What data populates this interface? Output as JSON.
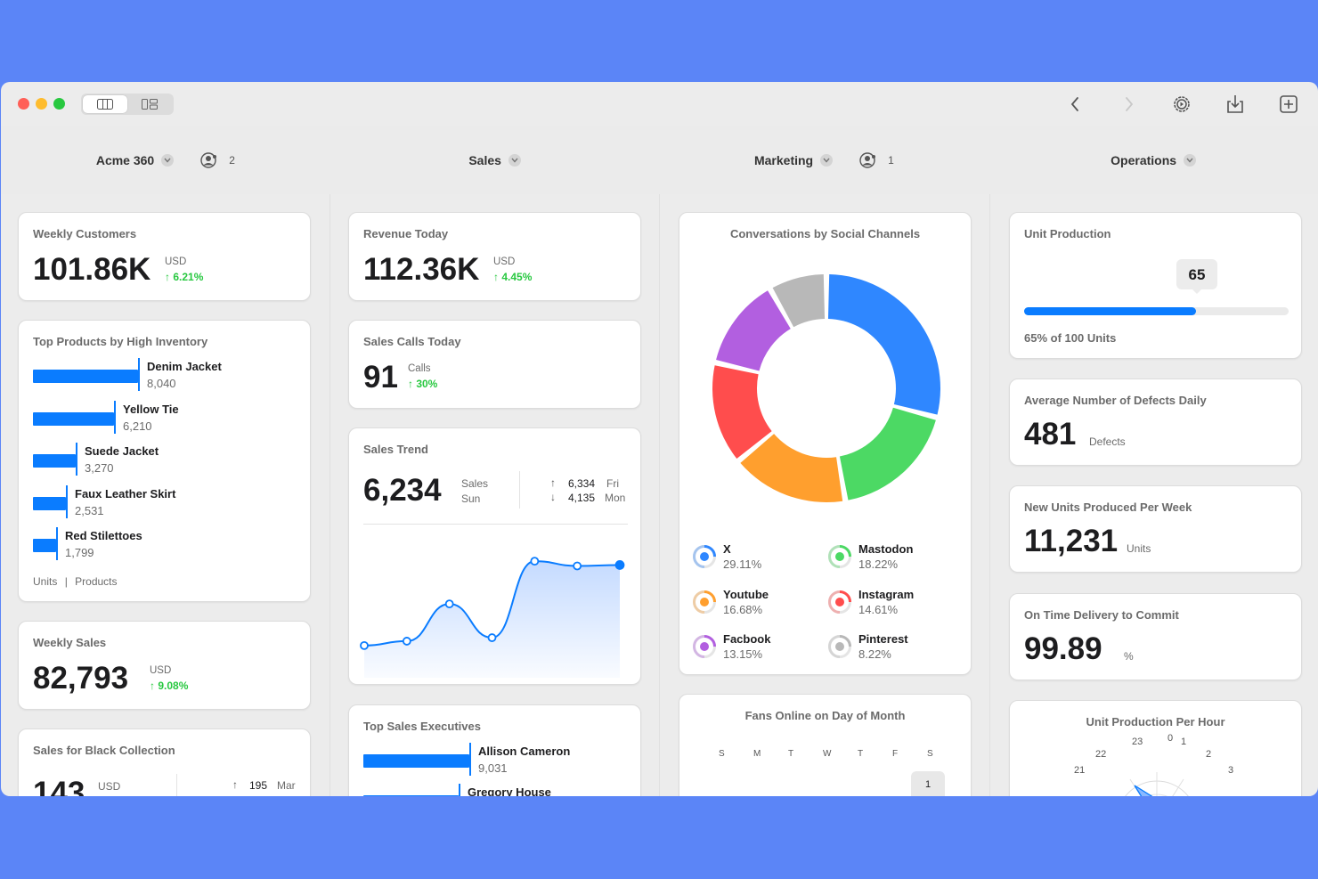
{
  "toolbar": {
    "icons": [
      "sidebar-columns-icon",
      "layout-grid-icon",
      "chevron-left-icon",
      "chevron-right-icon",
      "settings-gear-icon",
      "download-tray-icon",
      "add-square-icon"
    ]
  },
  "columns": [
    {
      "label": "Acme 360",
      "members": "2"
    },
    {
      "label": "Sales"
    },
    {
      "label": "Marketing",
      "members": "1"
    },
    {
      "label": "Operations"
    }
  ],
  "weekly_customers": {
    "title": "Weekly Customers",
    "value": "101.86K",
    "unit": "USD",
    "delta": "↑ 6.21%"
  },
  "top_products": {
    "title": "Top Products by High Inventory",
    "footer_units": "Units",
    "footer_products": "Products",
    "items": [
      {
        "name": "Denim Jacket",
        "value": "8,040",
        "amount": 8040
      },
      {
        "name": "Yellow Tie",
        "value": "6,210",
        "amount": 6210
      },
      {
        "name": "Suede Jacket",
        "value": "3,270",
        "amount": 3270
      },
      {
        "name": "Faux Leather Skirt",
        "value": "2,531",
        "amount": 2531
      },
      {
        "name": "Red Stilettoes",
        "value": "1,799",
        "amount": 1799
      }
    ]
  },
  "weekly_sales": {
    "title": "Weekly Sales",
    "value": "82,793",
    "unit": "USD",
    "delta": "↑ 9.08%"
  },
  "black_collection": {
    "title": "Sales for Black Collection",
    "value": "143",
    "unit": "USD",
    "high": "195",
    "high_label": "Mar"
  },
  "revenue_today": {
    "title": "Revenue Today",
    "value": "112.36K",
    "unit": "USD",
    "delta": "↑ 4.45%"
  },
  "sales_calls": {
    "title": "Sales Calls Today",
    "value": "91",
    "unit": "Calls",
    "delta": "↑ 30%"
  },
  "sales_trend": {
    "title": "Sales Trend",
    "value": "6,234",
    "unit": "Sales",
    "day": "Sun",
    "high": "6,334",
    "high_day": "Fri",
    "low": "4,135",
    "low_day": "Mon"
  },
  "top_execs": {
    "title": "Top Sales Executives",
    "items": [
      {
        "name": "Allison Cameron",
        "value": "9,031"
      },
      {
        "name": "Gregory House",
        "value": ""
      }
    ]
  },
  "social": {
    "title": "Conversations by Social Channels",
    "legend": [
      {
        "name": "X",
        "value": "29.11%",
        "color": "#2f87ff"
      },
      {
        "name": "Mastodon",
        "value": "18.22%",
        "color": "#4cd964"
      },
      {
        "name": "Youtube",
        "value": "16.68%",
        "color": "#ff9f2e"
      },
      {
        "name": "Instagram",
        "value": "14.61%",
        "color": "#ff4d4d"
      },
      {
        "name": "Facbook",
        "value": "13.15%",
        "color": "#b25fe0"
      },
      {
        "name": "Pinterest",
        "value": "8.22%",
        "color": "#b8b8b8"
      }
    ]
  },
  "fans": {
    "title": "Fans Online on Day of Month",
    "days": [
      "S",
      "M",
      "T",
      "W",
      "T",
      "F",
      "S"
    ],
    "first_day": "1"
  },
  "unit_production": {
    "title": "Unit Production",
    "badge": "65",
    "caption": "65% of 100 Units",
    "fraction": 0.65
  },
  "defects": {
    "title": "Average Number of Defects Daily",
    "value": "481",
    "unit": "Defects"
  },
  "new_units": {
    "title": "New Units Produced Per Week",
    "value": "11,231",
    "unit": "Units"
  },
  "on_time": {
    "title": "On Time Delivery to Commit",
    "value": "99.89",
    "unit": "%"
  },
  "per_hour": {
    "title": "Unit Production Per Hour",
    "hours": [
      "23",
      "0",
      "1",
      "22",
      "2",
      "21",
      "3"
    ]
  },
  "chart_data": [
    {
      "type": "pie",
      "title": "Conversations by Social Channels",
      "categories": [
        "X",
        "Mastodon",
        "Youtube",
        "Instagram",
        "Facbook",
        "Pinterest"
      ],
      "values": [
        29.11,
        18.22,
        16.68,
        14.61,
        13.15,
        8.22
      ]
    },
    {
      "type": "line",
      "title": "Sales Trend",
      "x": [
        1,
        2,
        3,
        4,
        5,
        6,
        7
      ],
      "values": [
        4135,
        4250,
        5220,
        4340,
        6334,
        6210,
        6234
      ]
    },
    {
      "type": "bar",
      "title": "Top Products by High Inventory",
      "categories": [
        "Denim Jacket",
        "Yellow Tie",
        "Suede Jacket",
        "Faux Leather Skirt",
        "Red Stilettoes"
      ],
      "values": [
        8040,
        6210,
        3270,
        2531,
        1799
      ]
    }
  ]
}
